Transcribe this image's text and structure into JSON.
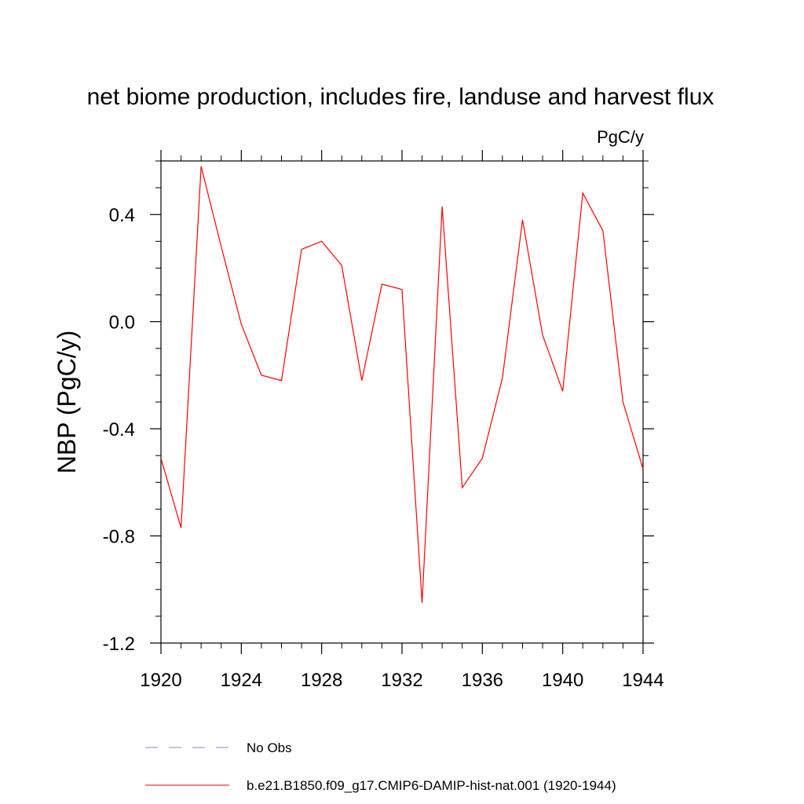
{
  "chart_data": {
    "type": "line",
    "title": "net biome production, includes fire, landuse and harvest flux",
    "units_label": "PgC/y",
    "ylabel": "NBP  (PgC/y)",
    "xlabel": "",
    "xlim": [
      1920,
      1944
    ],
    "ylim": [
      -1.2,
      0.6
    ],
    "x_ticks": [
      1920,
      1924,
      1928,
      1932,
      1936,
      1940,
      1944
    ],
    "x_tick_labels": [
      "1920",
      "1924",
      "1928",
      "1932",
      "1936",
      "1940",
      "1944"
    ],
    "y_ticks": [
      -1.2,
      -0.8,
      -0.4,
      0.0,
      0.4
    ],
    "y_tick_labels": [
      "-1.2",
      "-0.8",
      "-0.4",
      "0.0",
      "0.4"
    ],
    "grid": false,
    "legend_position": "bottom",
    "series": [
      {
        "name": "b.e21.B1850.f09_g17.CMIP6-DAMIP-hist-nat.001 (1920-1944)",
        "color": "#ff0000",
        "style": "solid",
        "x": [
          1920,
          1921,
          1922,
          1923,
          1924,
          1925,
          1926,
          1927,
          1928,
          1929,
          1930,
          1931,
          1932,
          1933,
          1934,
          1935,
          1936,
          1937,
          1938,
          1939,
          1940,
          1941,
          1942,
          1943,
          1944
        ],
        "y": [
          -0.51,
          -0.77,
          0.58,
          0.28,
          -0.01,
          -0.2,
          -0.22,
          0.27,
          0.3,
          0.21,
          -0.22,
          0.14,
          0.12,
          -1.05,
          0.43,
          -0.62,
          -0.51,
          -0.21,
          0.38,
          -0.05,
          -0.26,
          0.48,
          0.34,
          -0.3,
          -0.55
        ]
      }
    ],
    "legend": [
      {
        "label": "No Obs",
        "color": "#8a7fcf",
        "style": "dashed"
      },
      {
        "label": "b.e21.B1850.f09_g17.CMIP6-DAMIP-hist-nat.001 (1920-1944)",
        "color": "#ff0000",
        "style": "solid"
      }
    ]
  }
}
